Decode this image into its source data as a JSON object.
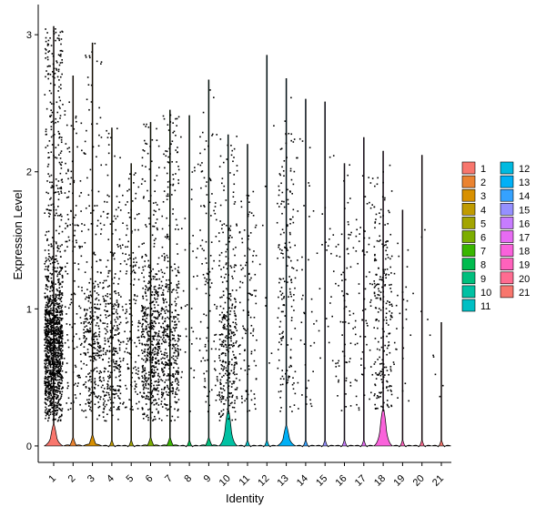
{
  "chart_data": {
    "type": "violin",
    "title": "",
    "xlabel": "Identity",
    "ylabel": "Expression Level",
    "ylim": [
      -0.12,
      3.22
    ],
    "yticks": [
      "0",
      "1",
      "2",
      "3"
    ],
    "categories": [
      "1",
      "2",
      "3",
      "4",
      "5",
      "6",
      "7",
      "8",
      "9",
      "10",
      "11",
      "12",
      "13",
      "14",
      "15",
      "16",
      "17",
      "18",
      "19",
      "20",
      "21"
    ],
    "colors": [
      "#F8766D",
      "#EA8331",
      "#D89000",
      "#C09B00",
      "#A3A500",
      "#7CAE00",
      "#39B600",
      "#00BB4E",
      "#00BF7D",
      "#00C1A3",
      "#00BFC4",
      "#00BAE0",
      "#00B0F6",
      "#35A2FF",
      "#9590FF",
      "#C77CFF",
      "#E76BF3",
      "#FA62DB",
      "#FF62BC",
      "#FF6C91",
      "#F8766D"
    ],
    "legend": {
      "position": "right",
      "title": ""
    },
    "max_values": [
      3.06,
      2.7,
      2.94,
      2.32,
      2.06,
      2.36,
      2.45,
      2.41,
      2.67,
      2.27,
      2.2,
      2.85,
      2.68,
      2.53,
      2.51,
      2.06,
      2.25,
      2.15,
      1.72,
      2.12,
      0.9
    ],
    "violin_bulge": [
      0.16,
      0.06,
      0.08,
      0.04,
      0.04,
      0.06,
      0.06,
      0.04,
      0.06,
      0.26,
      0.04,
      0.04,
      0.15,
      0.04,
      0.04,
      0.04,
      0.04,
      0.27,
      0.04,
      0.04,
      0.04
    ],
    "expressing_cells": [
      1400,
      150,
      320,
      320,
      160,
      520,
      420,
      40,
      110,
      330,
      110,
      8,
      170,
      40,
      25,
      70,
      70,
      230,
      28,
      6,
      5
    ]
  }
}
